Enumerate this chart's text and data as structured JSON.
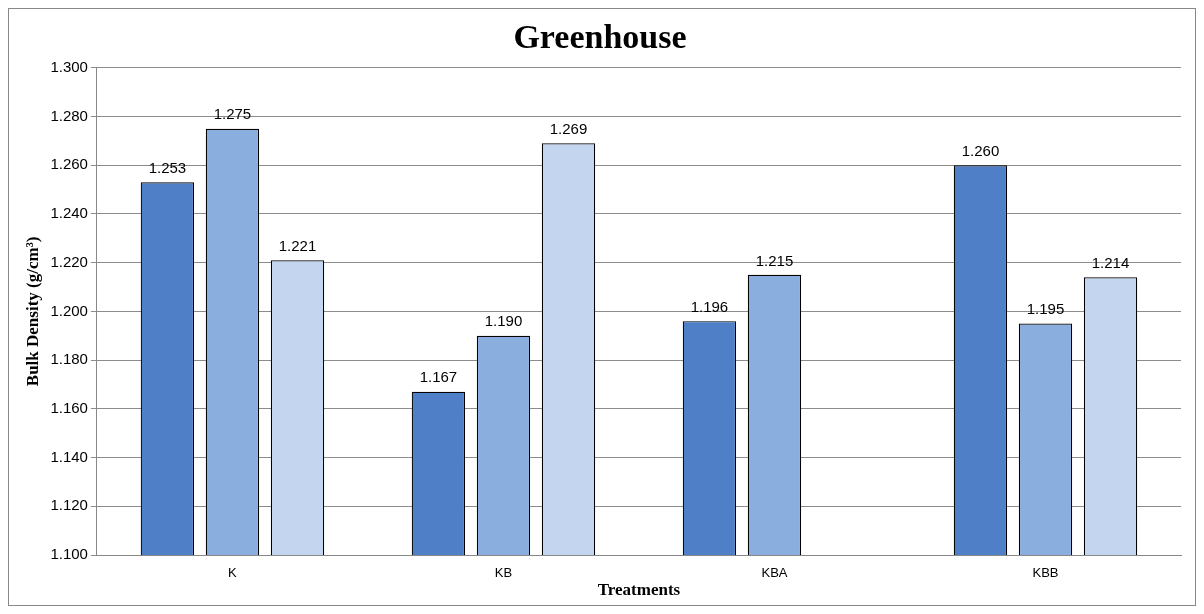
{
  "chart_data": {
    "type": "bar",
    "title": "Greenhouse",
    "xlabel": "Treatments",
    "ylabel": "Bulk Density (g/cm³)",
    "categories": [
      "K",
      "KB",
      "KBA",
      "KBB"
    ],
    "series": [
      {
        "color": "#4f7fc6",
        "values": [
          1.253,
          1.167,
          1.196,
          1.26
        ],
        "value_labels": [
          "1.253",
          "1.167",
          "1.196",
          "1.260"
        ]
      },
      {
        "color": "#8aaede",
        "values": [
          1.275,
          1.19,
          1.215,
          1.195
        ],
        "value_labels": [
          "1.275",
          "1.190",
          "1.215",
          "1.195"
        ]
      },
      {
        "color": "#c3d5ef",
        "values": [
          1.221,
          1.269,
          null,
          1.214
        ],
        "value_labels": [
          "1.221",
          "1.269",
          null,
          "1.214"
        ]
      }
    ],
    "ylim": [
      1.1,
      1.3
    ],
    "yticks": [
      {
        "value": 1.1,
        "label": "1.100"
      },
      {
        "value": 1.12,
        "label": "1.120"
      },
      {
        "value": 1.14,
        "label": "1.140"
      },
      {
        "value": 1.16,
        "label": "1.160"
      },
      {
        "value": 1.18,
        "label": "1.180"
      },
      {
        "value": 1.2,
        "label": "1.200"
      },
      {
        "value": 1.22,
        "label": "1.220"
      },
      {
        "value": 1.24,
        "label": "1.240"
      },
      {
        "value": 1.26,
        "label": "1.260"
      },
      {
        "value": 1.28,
        "label": "1.280"
      },
      {
        "value": 1.3,
        "label": "1.300"
      }
    ],
    "grid": "y",
    "legend": false
  }
}
